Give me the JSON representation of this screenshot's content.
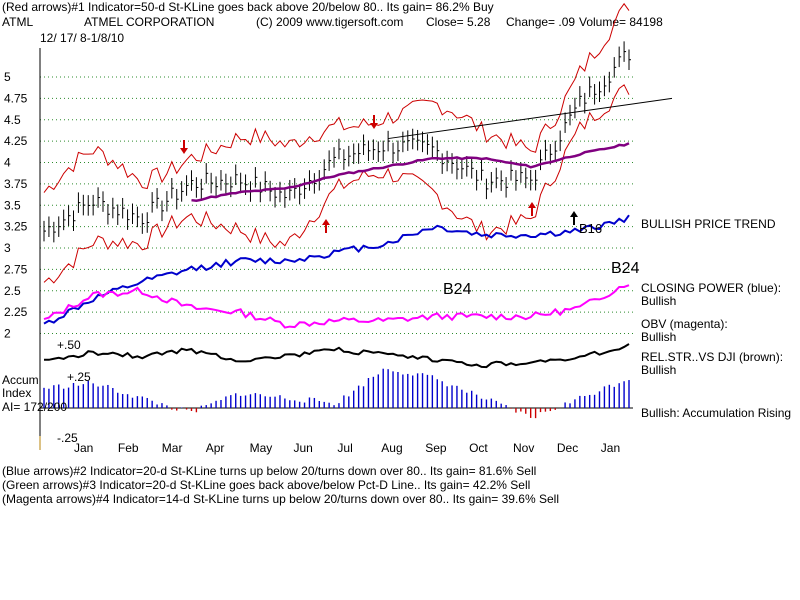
{
  "header": {
    "line1": "(Red arrows)#1 Indicator=50-d St-KLine goes back above 20/below 80.. Its gain= 86.2% Buy",
    "ticker": "ATML",
    "company": "ATMEL CORPORATION",
    "copyright": "(C) 2009 www.tigersoft.com",
    "close": "Close=  5.28",
    "change": "Change= .09",
    "volume": "Volume=  84198",
    "dates": "12/ 17/ 8-1/8/10"
  },
  "footer": {
    "line1": "(Blue arrows)#2 Indicator=20-d St-KLine turns up below 20/turns down over 80.. Its gain= 81.6% Sell",
    "line2": "(Green arrows)#3 Indicator=20-d St-KLine goes back above/below Pct-D Line.. Its gain= 42.2% Sell",
    "line3": "(Magenta arrows)#4 Indicator=14-d St-KLine turns up below 20/turns down over 80.. Its gain= 39.6% Sell"
  },
  "labels": {
    "b16": "B16",
    "b24_left": "B24",
    "b24_right": "B24",
    "bullish_trend": "BULLISH PRICE TREND",
    "closing_power": "CLOSING POWER (blue):",
    "cp_state": "Bullish",
    "obv": "OBV (magenta):",
    "obv_state": "Bullish",
    "relstr": "REL.STR..VS DJI (brown):",
    "relstr_state": "Bullish",
    "accum_rising": "Bullish: Accumulation Rising",
    "accum1": "Accum",
    "accum2": "Index",
    "ai": "AI= 172/200",
    "plus50": "+.50",
    "plus25": "+.25",
    "minus25": "-.25"
  },
  "chart_data": {
    "type": "line",
    "xlabel": "",
    "ylabel": "",
    "ylim": [
      2,
      5.25
    ],
    "yticks": [
      2,
      2.25,
      2.5,
      2.75,
      3,
      3.25,
      3.5,
      3.75,
      4,
      4.25,
      4.5,
      4.75,
      5
    ],
    "ytick_labels": [
      "2",
      "2.25",
      "2.5",
      "2.75",
      "3",
      "3.25",
      "3.5",
      "3.75",
      "4",
      "4.25",
      "4.5",
      "4.75",
      "5"
    ],
    "x": [
      "Jan",
      "Feb",
      "Mar",
      "Apr",
      "May",
      "Jun",
      "Jul",
      "Aug",
      "Sep",
      "Oct",
      "Nov",
      "Dec",
      "Jan"
    ],
    "grid": true,
    "series": [
      {
        "name": "Close",
        "color": "#000000",
        "values": [
          3.2,
          3.55,
          3.35,
          3.75,
          3.8,
          3.6,
          4.05,
          4.2,
          4.15,
          3.8,
          3.8,
          4.7,
          5.28
        ]
      },
      {
        "name": "50-day MA",
        "color": "#800080",
        "values": [
          null,
          3.1,
          3.45,
          3.55,
          3.65,
          3.7,
          3.85,
          3.95,
          4.05,
          4.05,
          3.95,
          4.1,
          4.22
        ]
      },
      {
        "name": "Closing Power",
        "color": "#0000cc",
        "values": [
          2.1,
          2.4,
          2.6,
          2.75,
          2.85,
          2.85,
          2.95,
          3.05,
          3.25,
          3.15,
          3.15,
          3.2,
          3.35
        ]
      },
      {
        "name": "OBV",
        "color": "#ff00ff",
        "values": [
          2.15,
          2.45,
          2.5,
          2.3,
          2.25,
          2.1,
          2.15,
          2.15,
          2.2,
          2.2,
          2.2,
          2.3,
          2.6
        ]
      }
    ],
    "annotations": [
      "B16",
      "B24",
      "B24"
    ],
    "legend": "right"
  }
}
